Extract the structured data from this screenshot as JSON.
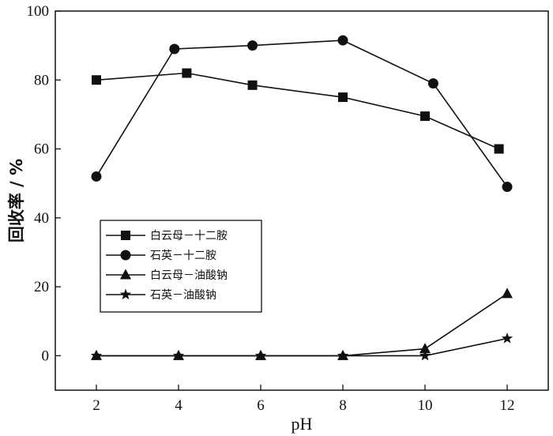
{
  "chart_data": {
    "type": "line",
    "xlabel": "pH",
    "ylabel": "回收率 / %",
    "xlim": [
      1,
      13
    ],
    "ylim": [
      -10,
      100
    ],
    "xticks": [
      2,
      4,
      6,
      8,
      10,
      12
    ],
    "yticks": [
      0,
      20,
      40,
      60,
      80,
      100
    ],
    "grid": false,
    "legend_position": "lower-left",
    "series": [
      {
        "name": "白云母－十二胺",
        "marker": "square",
        "color": "#111111",
        "points": [
          {
            "x": 2,
            "y": 80
          },
          {
            "x": 4.2,
            "y": 82
          },
          {
            "x": 5.8,
            "y": 78.5
          },
          {
            "x": 8,
            "y": 75
          },
          {
            "x": 10,
            "y": 69.5
          },
          {
            "x": 11.8,
            "y": 60
          }
        ]
      },
      {
        "name": "石英－十二胺",
        "marker": "circle",
        "color": "#111111",
        "points": [
          {
            "x": 2,
            "y": 52
          },
          {
            "x": 3.9,
            "y": 89
          },
          {
            "x": 5.8,
            "y": 90
          },
          {
            "x": 8,
            "y": 91.5
          },
          {
            "x": 10.2,
            "y": 79
          },
          {
            "x": 12,
            "y": 49
          }
        ]
      },
      {
        "name": "白云母－油酸钠",
        "marker": "triangle",
        "color": "#111111",
        "points": [
          {
            "x": 2,
            "y": 0
          },
          {
            "x": 4,
            "y": 0
          },
          {
            "x": 6,
            "y": 0
          },
          {
            "x": 8,
            "y": 0
          },
          {
            "x": 10,
            "y": 2
          },
          {
            "x": 12,
            "y": 18
          }
        ]
      },
      {
        "name": "石英－油酸钠",
        "marker": "star",
        "color": "#111111",
        "points": [
          {
            "x": 2,
            "y": 0
          },
          {
            "x": 4,
            "y": 0
          },
          {
            "x": 6,
            "y": 0
          },
          {
            "x": 8,
            "y": 0
          },
          {
            "x": 10,
            "y": 0
          },
          {
            "x": 12,
            "y": 5
          }
        ]
      }
    ]
  }
}
